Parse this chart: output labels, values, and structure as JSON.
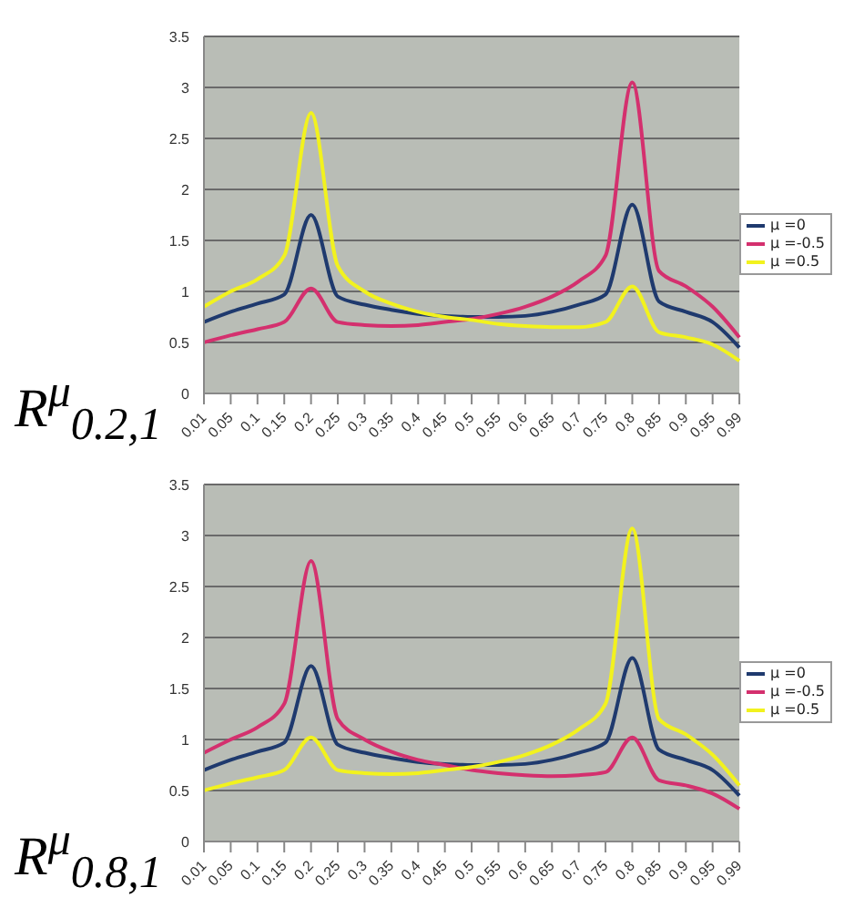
{
  "chart_data": [
    {
      "type": "line",
      "annotations": [
        "R$^{μ}$$_{0.2,1}$"
      ],
      "categories": [
        "0.01",
        "0.05",
        "0.1",
        "0.15",
        "0.2",
        "0.25",
        "0.3",
        "0.35",
        "0.4",
        "0.45",
        "0.5",
        "0.55",
        "0.6",
        "0.65",
        "0.7",
        "0.75",
        "0.8",
        "0.85",
        "0.9",
        "0.95",
        "0.99"
      ],
      "series": [
        {
          "name": "μ =0",
          "color": "#1f3a6e",
          "values": [
            0.7,
            0.8,
            0.88,
            0.97,
            1.75,
            0.95,
            0.87,
            0.82,
            0.78,
            0.76,
            0.75,
            0.75,
            0.76,
            0.8,
            0.87,
            0.97,
            1.85,
            0.9,
            0.8,
            0.7,
            0.45
          ]
        },
        {
          "name": "μ =-0.5",
          "color": "#d4306e",
          "values": [
            0.5,
            0.57,
            0.63,
            0.7,
            1.03,
            0.7,
            0.67,
            0.66,
            0.67,
            0.7,
            0.73,
            0.78,
            0.85,
            0.95,
            1.1,
            1.35,
            3.05,
            1.2,
            1.05,
            0.85,
            0.55
          ]
        },
        {
          "name": "μ =0.5",
          "color": "#f2f21e",
          "values": [
            0.85,
            1.0,
            1.12,
            1.35,
            2.75,
            1.25,
            1.0,
            0.88,
            0.8,
            0.75,
            0.72,
            0.68,
            0.66,
            0.65,
            0.65,
            0.7,
            1.05,
            0.6,
            0.55,
            0.48,
            0.32
          ]
        }
      ],
      "ylim": [
        0,
        3.5
      ],
      "yticks": [
        0,
        0.5,
        1,
        1.5,
        2,
        2.5,
        3,
        3.5
      ],
      "grid": "y",
      "legend": "right",
      "marker": "none",
      "line_style": "solid"
    },
    {
      "type": "line",
      "annotations": [
        "R$^{μ}$$_{0.8,1}$"
      ],
      "categories": [
        "0.01",
        "0.05",
        "0.1",
        "0.15",
        "0.2",
        "0.25",
        "0.3",
        "0.35",
        "0.4",
        "0.45",
        "0.5",
        "0.55",
        "0.6",
        "0.65",
        "0.7",
        "0.75",
        "0.8",
        "0.85",
        "0.9",
        "0.95",
        "0.99"
      ],
      "series": [
        {
          "name": "μ =0",
          "color": "#1f3a6e",
          "values": [
            0.7,
            0.8,
            0.88,
            0.97,
            1.72,
            0.95,
            0.87,
            0.82,
            0.78,
            0.76,
            0.75,
            0.75,
            0.76,
            0.8,
            0.87,
            0.97,
            1.8,
            0.9,
            0.8,
            0.7,
            0.45
          ]
        },
        {
          "name": "μ =-0.5",
          "color": "#d4306e",
          "values": [
            0.87,
            1.0,
            1.12,
            1.35,
            2.75,
            1.2,
            1.0,
            0.88,
            0.8,
            0.75,
            0.7,
            0.67,
            0.65,
            0.64,
            0.65,
            0.68,
            1.02,
            0.6,
            0.55,
            0.47,
            0.32
          ]
        },
        {
          "name": "μ =0.5",
          "color": "#f2f21e",
          "values": [
            0.5,
            0.57,
            0.63,
            0.7,
            1.02,
            0.7,
            0.67,
            0.66,
            0.67,
            0.7,
            0.73,
            0.78,
            0.85,
            0.95,
            1.1,
            1.35,
            3.07,
            1.2,
            1.05,
            0.85,
            0.55
          ]
        }
      ],
      "ylim": [
        0,
        3.5
      ],
      "yticks": [
        0,
        0.5,
        1,
        1.5,
        2,
        2.5,
        3,
        3.5
      ],
      "grid": "y",
      "legend": "right",
      "marker": "none",
      "line_style": "solid"
    }
  ]
}
